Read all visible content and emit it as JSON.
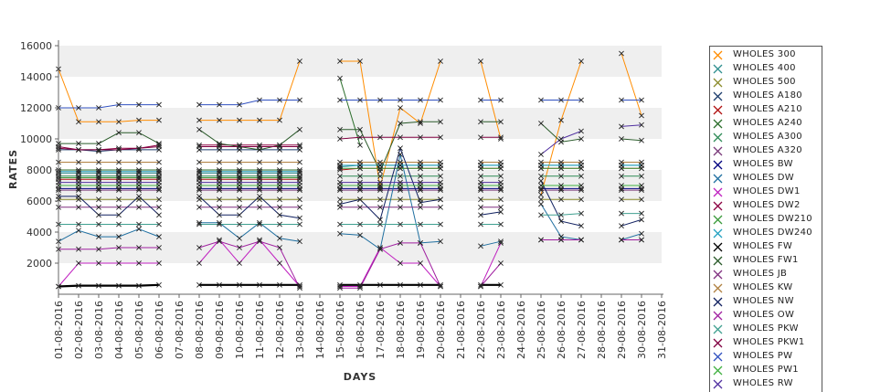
{
  "chart_data": {
    "type": "line",
    "xlabel": "DAYS",
    "ylabel": "RATES",
    "ylim": [
      0,
      16000
    ],
    "yticks": [
      2000,
      4000,
      6000,
      8000,
      10000,
      12000,
      14000,
      16000
    ],
    "grid": "alternating horizontal bands",
    "legend_position": "right",
    "categories": [
      "01-08-2016",
      "02-08-2016",
      "03-08-2016",
      "04-08-2016",
      "05-08-2016",
      "06-08-2016",
      "07-08-2016",
      "08-08-2016",
      "09-08-2016",
      "10-08-2016",
      "11-08-2016",
      "12-08-2016",
      "13-08-2016",
      "14-08-2016",
      "15-08-2016",
      "16-08-2016",
      "17-08-2016",
      "18-08-2016",
      "19-08-2016",
      "20-08-2016",
      "21-08-2016",
      "22-08-2016",
      "23-08-2016",
      "24-08-2016",
      "25-08-2016",
      "26-08-2016",
      "27-08-2016",
      "28-08-2016",
      "29-08-2016",
      "30-08-2016",
      "31-08-2016"
    ],
    "series": [
      {
        "name": "WHOLES 300",
        "color": "#ff8c00",
        "values": [
          14500,
          11100,
          11100,
          11100,
          11200,
          11200,
          null,
          11200,
          11200,
          11200,
          11200,
          11200,
          15000,
          null,
          15000,
          15000,
          6900,
          12000,
          11000,
          15000,
          null,
          15000,
          10000,
          null,
          6400,
          11200,
          15000,
          null,
          15500,
          11500,
          null
        ]
      },
      {
        "name": "WHOLES 400",
        "color": "#2f8f8f",
        "values": [
          7800,
          7800,
          7800,
          7800,
          7800,
          7800,
          null,
          7800,
          7800,
          7800,
          7800,
          7800,
          7800,
          null,
          8200,
          8300,
          8300,
          8300,
          8300,
          8300,
          null,
          8300,
          8300,
          null,
          8300,
          8300,
          8300,
          null,
          8300,
          8300,
          null
        ]
      },
      {
        "name": "WHOLES 500",
        "color": "#8b8b2a",
        "values": [
          6100,
          6100,
          6100,
          6100,
          6100,
          6100,
          null,
          6100,
          6100,
          6100,
          6100,
          6100,
          6100,
          null,
          6100,
          6100,
          6100,
          6100,
          6100,
          6100,
          null,
          6100,
          6100,
          null,
          6100,
          6100,
          6100,
          null,
          6100,
          6100,
          null
        ]
      },
      {
        "name": "WHOLES A180",
        "color": "#1c3c6c",
        "values": [
          9300,
          9300,
          9200,
          9300,
          9300,
          9300,
          null,
          9300,
          9300,
          9300,
          9300,
          9300,
          9300,
          null,
          null,
          null,
          null,
          null,
          null,
          null,
          null,
          null,
          null,
          null,
          null,
          null,
          null,
          null,
          null,
          null,
          null
        ]
      },
      {
        "name": "WHOLES A210",
        "color": "#b01010",
        "values": [
          7400,
          7400,
          7400,
          7400,
          7400,
          7400,
          null,
          7400,
          7400,
          7400,
          7400,
          7400,
          7400,
          null,
          8000,
          8100,
          8100,
          8100,
          8100,
          8100,
          null,
          8100,
          8100,
          null,
          8100,
          8100,
          8100,
          null,
          8100,
          8100,
          null
        ]
      },
      {
        "name": "WHOLES A240",
        "color": "#2b6e2b",
        "values": [
          8000,
          8000,
          8000,
          8000,
          8000,
          8000,
          null,
          8000,
          8000,
          8000,
          8000,
          8000,
          8000,
          null,
          13900,
          9600,
          null,
          null,
          null,
          null,
          null,
          null,
          null,
          null,
          null,
          null,
          null,
          null,
          null,
          null,
          null
        ]
      },
      {
        "name": "WHOLES A300",
        "color": "#2e8b57",
        "values": [
          7600,
          7600,
          7600,
          7600,
          7600,
          7600,
          null,
          7600,
          7600,
          7600,
          7600,
          7600,
          7600,
          null,
          7600,
          7600,
          7600,
          7600,
          7600,
          7600,
          null,
          7600,
          7600,
          null,
          7600,
          7600,
          7600,
          null,
          7600,
          7600,
          null
        ]
      },
      {
        "name": "WHOLES A320",
        "color": "#7a3a7a",
        "values": [
          6700,
          6700,
          6700,
          6700,
          6700,
          6700,
          null,
          6700,
          6700,
          6700,
          6700,
          6700,
          6700,
          null,
          6700,
          6700,
          6700,
          6700,
          6700,
          6700,
          null,
          6700,
          6700,
          null,
          6700,
          6700,
          6700,
          null,
          6700,
          6700,
          null
        ]
      },
      {
        "name": "WHOLES BW",
        "color": "#000080",
        "values": [
          6800,
          6800,
          6800,
          6800,
          6800,
          6800,
          null,
          6800,
          6800,
          6800,
          6800,
          6800,
          6800,
          null,
          6800,
          6800,
          6800,
          6800,
          6800,
          6800,
          null,
          6800,
          6800,
          null,
          6800,
          6800,
          6800,
          null,
          6800,
          6800,
          null
        ]
      },
      {
        "name": "WHOLES DW",
        "color": "#1f6fa0",
        "values": [
          3400,
          4100,
          3700,
          3700,
          4200,
          3700,
          null,
          4600,
          4600,
          3600,
          4600,
          3600,
          3400,
          null,
          3900,
          3800,
          2900,
          9000,
          3300,
          3400,
          null,
          3100,
          3400,
          null,
          5800,
          3700,
          3500,
          null,
          3500,
          3900,
          null
        ]
      },
      {
        "name": "WHOLES DW1",
        "color": "#c020c0",
        "values": [
          500,
          2000,
          2000,
          2000,
          2000,
          2000,
          null,
          2000,
          3500,
          2000,
          3500,
          2000,
          500,
          null,
          500,
          500,
          3000,
          2000,
          2000,
          500,
          null,
          500,
          3300,
          null,
          3500,
          3500,
          3500,
          null,
          3500,
          3500,
          null
        ]
      },
      {
        "name": "WHOLES DW2",
        "color": "#8b0040",
        "values": [
          9400,
          9300,
          9300,
          9400,
          9400,
          9600,
          null,
          9600,
          9600,
          9600,
          9600,
          9600,
          9600,
          null,
          null,
          null,
          null,
          null,
          null,
          null,
          null,
          null,
          null,
          null,
          null,
          null,
          null,
          null,
          null,
          null,
          null
        ]
      },
      {
        "name": "WHOLES DW210",
        "color": "#3a9a3a",
        "values": [
          7500,
          7500,
          7500,
          7500,
          7500,
          7500,
          null,
          7500,
          7500,
          7500,
          7500,
          7500,
          7500,
          null,
          8100,
          8100,
          8100,
          8100,
          8100,
          8100,
          null,
          8100,
          8100,
          null,
          8100,
          8100,
          8100,
          null,
          8100,
          8100,
          null
        ]
      },
      {
        "name": "WHOLES DW240",
        "color": "#20a0c0",
        "values": [
          7900,
          7900,
          7900,
          7900,
          7900,
          7900,
          null,
          7900,
          7900,
          7900,
          7900,
          7900,
          7900,
          null,
          8300,
          8300,
          8300,
          8300,
          8300,
          8300,
          null,
          8300,
          8300,
          null,
          8300,
          8300,
          8300,
          null,
          8300,
          8300,
          null
        ]
      },
      {
        "name": "WHOLES FW",
        "color": "#000000",
        "values": [
          500,
          550,
          550,
          550,
          550,
          600,
          null,
          600,
          600,
          600,
          600,
          600,
          600,
          null,
          600,
          600,
          600,
          600,
          600,
          600,
          null,
          600,
          600,
          null,
          null,
          null,
          null,
          null,
          null,
          null,
          null
        ]
      },
      {
        "name": "WHOLES FW1",
        "color": "#2a5a2a",
        "values": [
          9700,
          9700,
          9700,
          10400,
          10400,
          9700,
          null,
          10600,
          9700,
          9500,
          9300,
          9600,
          10600,
          null,
          10600,
          10600,
          7900,
          11000,
          11100,
          11100,
          null,
          11100,
          11100,
          null,
          11000,
          9800,
          10000,
          null,
          10000,
          9900,
          null
        ]
      },
      {
        "name": "WHOLES JB",
        "color": "#803080",
        "values": [
          5600,
          5600,
          5600,
          5600,
          5600,
          5600,
          null,
          5600,
          5600,
          5600,
          5600,
          5600,
          5600,
          null,
          5600,
          5600,
          5600,
          5600,
          5600,
          5600,
          null,
          5600,
          5600,
          null,
          null,
          null,
          null,
          null,
          null,
          null,
          null
        ]
      },
      {
        "name": "WHOLES KW",
        "color": "#b08040",
        "values": [
          8500,
          8500,
          8500,
          8500,
          8500,
          8500,
          null,
          8500,
          8500,
          8500,
          8500,
          8500,
          8500,
          null,
          8500,
          8500,
          8500,
          8500,
          8500,
          8500,
          null,
          8500,
          8500,
          null,
          8500,
          8500,
          8500,
          null,
          8500,
          8500,
          null
        ]
      },
      {
        "name": "WHOLES NW",
        "color": "#102060",
        "values": [
          6300,
          6300,
          5100,
          5100,
          6300,
          5100,
          null,
          6300,
          5100,
          5100,
          6300,
          5100,
          4900,
          null,
          5800,
          6100,
          4800,
          9400,
          5900,
          6100,
          null,
          5100,
          5300,
          null,
          7300,
          4700,
          4400,
          null,
          4400,
          4800,
          null
        ]
      },
      {
        "name": "WHOLES OW",
        "color": "#a020a0",
        "values": [
          2900,
          2900,
          2900,
          3000,
          3000,
          3000,
          null,
          3000,
          3400,
          3000,
          3400,
          3000,
          400,
          null,
          400,
          400,
          2900,
          3300,
          3300,
          500,
          null,
          500,
          2000,
          null,
          3500,
          3500,
          3500,
          null,
          3500,
          3500,
          null
        ]
      },
      {
        "name": "WHOLES PKW",
        "color": "#40a090",
        "values": [
          4500,
          4500,
          4500,
          4500,
          4500,
          4500,
          null,
          4500,
          4500,
          4500,
          4500,
          4500,
          4500,
          null,
          4500,
          4500,
          4500,
          4500,
          4500,
          4500,
          null,
          4500,
          4500,
          null,
          5100,
          5100,
          5200,
          null,
          5200,
          5200,
          null
        ]
      },
      {
        "name": "WHOLES PKW1",
        "color": "#800040",
        "values": [
          9500,
          9300,
          9300,
          9300,
          9400,
          9500,
          null,
          9500,
          9500,
          9500,
          9500,
          9500,
          9500,
          null,
          10000,
          10100,
          10100,
          10100,
          10100,
          10100,
          null,
          10100,
          10100,
          null,
          null,
          null,
          null,
          null,
          null,
          null,
          null
        ]
      },
      {
        "name": "WHOLES PW",
        "color": "#3050c0",
        "values": [
          12000,
          12000,
          12000,
          12200,
          12200,
          12200,
          null,
          12200,
          12200,
          12200,
          12500,
          12500,
          12500,
          null,
          12500,
          12500,
          12500,
          12500,
          12500,
          12500,
          null,
          12500,
          12500,
          null,
          12500,
          12500,
          12500,
          null,
          12500,
          12500,
          null
        ]
      },
      {
        "name": "WHOLES PW1",
        "color": "#40b040",
        "values": [
          7000,
          7000,
          7000,
          7000,
          7000,
          7000,
          null,
          7000,
          7000,
          7000,
          7000,
          7000,
          7000,
          null,
          7000,
          7000,
          7000,
          7000,
          7000,
          7000,
          null,
          7000,
          7000,
          null,
          7000,
          7000,
          7000,
          null,
          7000,
          7000,
          null
        ]
      },
      {
        "name": "WHOLES RW",
        "color": "#5030a0",
        "values": [
          7200,
          7200,
          7200,
          7200,
          7200,
          7200,
          null,
          7200,
          7200,
          7200,
          7200,
          7200,
          7200,
          null,
          7200,
          7200,
          7200,
          7200,
          7200,
          7200,
          null,
          7200,
          7200,
          null,
          9000,
          10000,
          10500,
          null,
          10800,
          10900,
          null
        ]
      }
    ]
  }
}
